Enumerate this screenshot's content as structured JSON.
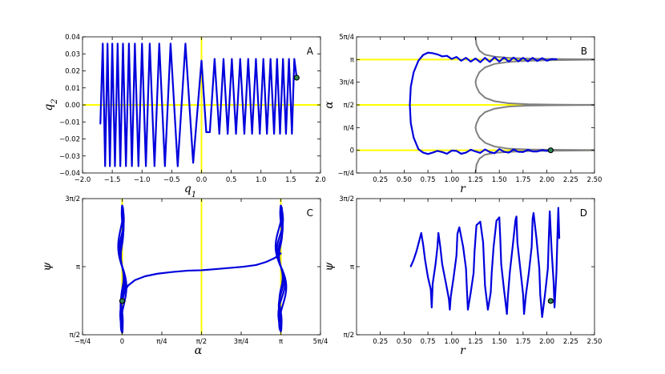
{
  "chart_data": [
    {
      "id": "A",
      "type": "line",
      "panel_label": "A",
      "xlabel": "q1",
      "ylabel": "q2",
      "xlim": [
        -2.0,
        2.0
      ],
      "ylim": [
        -0.04,
        0.04
      ],
      "xticks": [
        -2.0,
        -1.5,
        -1.0,
        -0.5,
        0.0,
        0.5,
        1.0,
        1.5,
        2.0
      ],
      "xtick_labels": [
        "−2.0",
        "−1.5",
        "−1.0",
        "−0.5",
        "0.0",
        "0.5",
        "1.0",
        "1.5",
        "2.0"
      ],
      "yticks": [
        -0.04,
        -0.03,
        -0.02,
        -0.01,
        0.0,
        0.01,
        0.02,
        0.03,
        0.04
      ],
      "ytick_labels": [
        "−0.04",
        "−0.03",
        "−0.02",
        "−0.01",
        "0.00",
        "0.01",
        "0.02",
        "0.03",
        "0.04"
      ],
      "ref_lines": {
        "h": [
          0.0
        ],
        "v": [
          0.0
        ]
      },
      "series": [
        {
          "x": [
            -1.7,
            -1.66,
            -1.62,
            -1.58,
            -1.54,
            -1.5,
            -1.455,
            -1.41,
            -1.365,
            -1.32,
            -1.27,
            -1.22,
            -1.17,
            -1.12,
            -1.06,
            -1.0,
            -0.935,
            -0.87,
            -0.79,
            -0.71,
            -0.615,
            -0.52,
            -0.4,
            -0.27,
            -0.14,
            0.0,
            0.08,
            0.14,
            0.22,
            0.3,
            0.37,
            0.44,
            0.51,
            0.58,
            0.65,
            0.72,
            0.785,
            0.85,
            0.915,
            0.98,
            1.04,
            1.1,
            1.16,
            1.22,
            1.27,
            1.32,
            1.37,
            1.42,
            1.47,
            1.52,
            1.56,
            1.6
          ],
          "y": [
            -0.011,
            0.036,
            -0.036,
            0.036,
            -0.036,
            0.036,
            -0.036,
            0.036,
            -0.036,
            0.036,
            -0.036,
            0.036,
            -0.036,
            0.036,
            -0.036,
            0.036,
            -0.036,
            0.036,
            -0.036,
            0.036,
            -0.036,
            0.036,
            -0.036,
            0.036,
            -0.034,
            0.026,
            -0.016,
            -0.016,
            0.027,
            -0.017,
            0.027,
            -0.017,
            0.027,
            -0.017,
            0.027,
            -0.017,
            0.027,
            -0.017,
            0.027,
            -0.017,
            0.027,
            -0.017,
            0.027,
            -0.017,
            0.027,
            -0.017,
            0.027,
            -0.017,
            0.027,
            -0.017,
            0.027,
            0.016
          ]
        }
      ],
      "end_marker": {
        "x": 1.6,
        "y": 0.016
      }
    },
    {
      "id": "B",
      "type": "line",
      "panel_label": "B",
      "xlabel": "r",
      "ylabel": "α",
      "xlim": [
        0.0,
        2.5
      ],
      "ylim": [
        -0.7854,
        3.927
      ],
      "xticks": [
        0.25,
        0.5,
        0.75,
        1.0,
        1.25,
        1.5,
        1.75,
        2.0,
        2.25,
        2.5
      ],
      "xtick_labels": [
        "0.25",
        "0.50",
        "0.75",
        "1.00",
        "1.25",
        "1.50",
        "1.75",
        "2.00",
        "2.25",
        "2.50"
      ],
      "yticks": [
        -0.7854,
        0.0,
        0.7854,
        1.5708,
        2.3562,
        3.1416,
        3.927
      ],
      "ytick_labels": [
        "−π/4",
        "0",
        "π/4",
        "π/2",
        "3π/4",
        "π",
        "5π/4"
      ],
      "ref_lines": {
        "h": [
          0.0,
          1.5708,
          3.1416
        ],
        "v": []
      },
      "gray_curves": [
        {
          "r": [
            1.25,
            1.26,
            1.29,
            1.35,
            1.45,
            1.6,
            1.8,
            2.05,
            2.3,
            2.5
          ],
          "alpha": [
            3.927,
            3.66,
            3.45,
            3.31,
            3.24,
            3.2,
            3.175,
            3.16,
            3.15,
            3.146
          ]
        },
        {
          "r": [
            2.5,
            2.3,
            2.05,
            1.8,
            1.6,
            1.45,
            1.35,
            1.29,
            1.26,
            1.25,
            1.26,
            1.29,
            1.35,
            1.45,
            1.6,
            1.8,
            2.05,
            2.3,
            2.5
          ],
          "alpha": [
            3.136,
            3.13,
            3.12,
            3.1,
            3.06,
            2.99,
            2.87,
            2.7,
            2.5,
            2.356,
            2.2,
            2.0,
            1.82,
            1.7,
            1.625,
            1.595,
            1.582,
            1.575,
            1.573
          ]
        },
        {
          "r": [
            2.5,
            2.3,
            2.05,
            1.8,
            1.6,
            1.45,
            1.35,
            1.29,
            1.26,
            1.25,
            1.26,
            1.29,
            1.35,
            1.45,
            1.6,
            1.8,
            2.05,
            2.3,
            2.5
          ],
          "alpha": [
            1.568,
            1.565,
            1.558,
            1.545,
            1.516,
            1.44,
            1.32,
            1.14,
            0.93,
            0.785,
            0.64,
            0.44,
            0.26,
            0.13,
            0.055,
            0.03,
            0.018,
            0.012,
            0.008
          ]
        },
        {
          "r": [
            2.5,
            2.3,
            2.05,
            1.8,
            1.6,
            1.45,
            1.35,
            1.29,
            1.26,
            1.25
          ],
          "alpha": [
            -0.004,
            -0.01,
            -0.016,
            -0.03,
            -0.055,
            -0.09,
            -0.15,
            -0.29,
            -0.5,
            -0.7854
          ]
        }
      ],
      "series": [
        {
          "r": [
            2.1,
            2.05,
            2.0,
            1.95,
            1.9,
            1.85,
            1.8,
            1.75,
            1.7,
            1.65,
            1.6,
            1.55,
            1.5,
            1.45,
            1.4,
            1.35,
            1.3,
            1.25,
            1.2,
            1.15,
            1.1,
            1.05,
            1.0,
            0.95,
            0.9,
            0.85,
            0.8,
            0.75,
            0.7,
            0.65,
            0.6,
            0.57,
            0.56,
            0.57,
            0.6,
            0.65,
            0.7,
            0.75,
            0.8,
            0.85,
            0.9,
            0.95,
            1.0,
            1.05,
            1.1,
            1.15,
            1.2,
            1.25,
            1.3,
            1.35,
            1.4,
            1.45,
            1.5,
            1.55,
            1.6,
            1.65,
            1.7,
            1.75,
            1.8,
            1.85,
            1.9,
            1.95,
            2.0,
            2.04
          ],
          "alpha": [
            3.15,
            3.16,
            3.1,
            3.19,
            3.09,
            3.2,
            3.08,
            3.2,
            3.08,
            3.21,
            3.07,
            3.21,
            3.07,
            3.22,
            3.06,
            3.2,
            3.05,
            3.18,
            3.07,
            3.2,
            3.1,
            3.23,
            3.16,
            3.27,
            3.25,
            3.32,
            3.36,
            3.38,
            3.3,
            3.1,
            2.7,
            2.2,
            1.57,
            0.94,
            0.44,
            0.04,
            -0.08,
            -0.13,
            -0.08,
            -0.02,
            -0.06,
            -0.12,
            -0.01,
            -0.02,
            -0.12,
            -0.08,
            0.02,
            -0.04,
            -0.09,
            0.03,
            -0.06,
            -0.1,
            0.04,
            -0.05,
            -0.08,
            0.03,
            -0.05,
            -0.06,
            0.02,
            -0.04,
            -0.04,
            0.01,
            -0.02,
            0.0
          ]
        }
      ],
      "end_marker": {
        "r": 2.04,
        "alpha": 0.0
      }
    },
    {
      "id": "C",
      "type": "line",
      "panel_label": "C",
      "xlabel": "α",
      "ylabel": "ψ",
      "xlim": [
        -0.7854,
        3.927
      ],
      "ylim": [
        1.5708,
        4.7124
      ],
      "xticks": [
        -0.7854,
        0.0,
        0.7854,
        1.5708,
        2.3562,
        3.1416,
        3.927
      ],
      "xtick_labels": [
        "−π/4",
        "0",
        "π/4",
        "π/2",
        "3π/4",
        "π",
        "5π/4"
      ],
      "yticks": [
        1.5708,
        3.1416,
        4.7124
      ],
      "ytick_labels": [
        "π/2",
        "π",
        "3π/2"
      ],
      "ref_lines": {
        "h": [],
        "v": [
          0.0,
          1.5708,
          3.1416
        ]
      },
      "series": [
        {
          "name": "",
          "alpha": [
            0.0,
            0.05,
            0.12,
            0.25,
            0.45,
            0.7,
            1.0,
            1.3,
            1.5708,
            1.8,
            2.1,
            2.4,
            2.65,
            2.85,
            3.0,
            3.1,
            3.14
          ],
          "psi": [
            2.35,
            2.58,
            2.71,
            2.83,
            2.92,
            2.98,
            3.02,
            3.05,
            3.06,
            3.08,
            3.11,
            3.14,
            3.18,
            3.25,
            3.33,
            3.4,
            3.45
          ]
        }
      ],
      "bundles": [
        {
          "center_alpha": 0.0,
          "psi_min": 1.62,
          "psi_max": 4.55,
          "spread": 0.1
        },
        {
          "center_alpha": 3.1416,
          "psi_min": 1.65,
          "psi_max": 4.55,
          "spread": 0.13
        }
      ],
      "end_marker": {
        "alpha": 0.0,
        "psi": 2.35
      }
    },
    {
      "id": "D",
      "type": "line",
      "panel_label": "D",
      "xlabel": "r",
      "ylabel": "ψ",
      "xlim": [
        0.0,
        2.5
      ],
      "ylim": [
        1.5708,
        4.7124
      ],
      "xticks": [
        0.25,
        0.5,
        0.75,
        1.0,
        1.25,
        1.5,
        1.75,
        2.0,
        2.25,
        2.5
      ],
      "xtick_labels": [
        "0.25",
        "0.50",
        "0.75",
        "1.00",
        "1.25",
        "1.50",
        "1.75",
        "2.00",
        "2.25",
        "2.50"
      ],
      "yticks": [
        1.5708,
        3.1416,
        4.7124
      ],
      "ytick_labels": [
        "π/2",
        "π",
        "3π/2"
      ],
      "ref_lines": {
        "h": [],
        "v": []
      },
      "series": [
        {
          "r": [
            0.57,
            0.6,
            0.63,
            0.66,
            0.68,
            0.7,
            0.72,
            0.75,
            0.78,
            0.79,
            0.8,
            0.83,
            0.85,
            0.86,
            0.88,
            0.9,
            0.94,
            0.97,
            0.98,
            0.99,
            1.02,
            1.05,
            1.06,
            1.08,
            1.12,
            1.15,
            1.16,
            1.17,
            1.2,
            1.23,
            1.24,
            1.26,
            1.3,
            1.33,
            1.34,
            1.35,
            1.38,
            1.41,
            1.42,
            1.44,
            1.47,
            1.5,
            1.51,
            1.52,
            1.55,
            1.58,
            1.59,
            1.61,
            1.64,
            1.67,
            1.68,
            1.69,
            1.72,
            1.75,
            1.76,
            1.78,
            1.81,
            1.84,
            1.85,
            1.86,
            1.89,
            1.92,
            1.93,
            1.95,
            1.98,
            2.01,
            2.02,
            2.03,
            2.05,
            2.07,
            2.08,
            2.1,
            2.11,
            2.12,
            2.13
          ],
          "psi": [
            3.15,
            3.3,
            3.5,
            3.75,
            3.92,
            3.65,
            3.3,
            2.9,
            2.62,
            2.2,
            2.75,
            3.2,
            3.6,
            3.92,
            3.6,
            3.2,
            2.75,
            2.4,
            2.15,
            2.45,
            2.9,
            3.4,
            3.9,
            4.05,
            3.6,
            3.1,
            2.6,
            2.15,
            2.55,
            3.0,
            3.5,
            4.1,
            4.18,
            3.7,
            3.2,
            2.7,
            2.15,
            2.55,
            3.0,
            3.6,
            4.2,
            4.28,
            3.8,
            3.2,
            2.6,
            2.05,
            2.45,
            3.0,
            3.6,
            4.22,
            4.3,
            3.7,
            3.1,
            2.5,
            2.05,
            2.5,
            3.0,
            3.6,
            4.25,
            4.38,
            3.8,
            3.1,
            2.5,
            1.98,
            2.5,
            3.1,
            3.8,
            4.42,
            3.5,
            2.8,
            2.2,
            3.0,
            3.8,
            4.5,
            3.8
          ]
        }
      ],
      "end_marker": {
        "r": 2.04,
        "psi": 2.35
      }
    }
  ]
}
